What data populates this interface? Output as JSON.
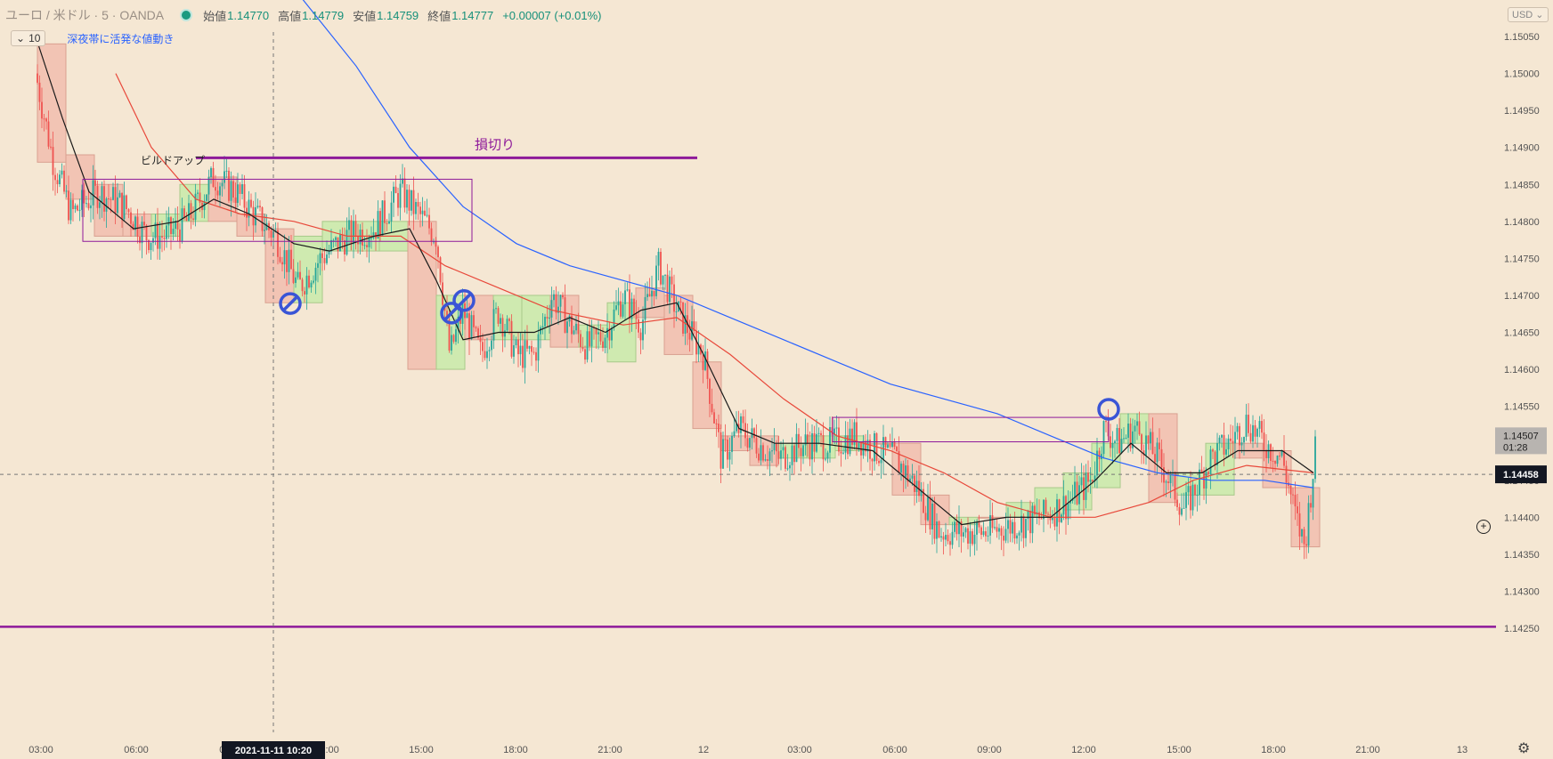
{
  "header": {
    "symbol": "ユーロ / 米ドル · 5 · OANDA",
    "open_label": "始値",
    "open": "1.14770",
    "high_label": "高値",
    "high": "1.14779",
    "low_label": "安値",
    "low": "1.14759",
    "close_label": "終値",
    "close": "1.14777",
    "change": "+0.00007 (+0.01%)",
    "collapse_count": "10",
    "indicator_label": "深夜帯に活発な値動き",
    "currency": "USD"
  },
  "colors": {
    "background": "#f5e7d3",
    "up": "#26a69a",
    "down": "#ef5350",
    "sma_short": "#1a1a1a",
    "sma_mid": "#e8483a",
    "sma_long": "#2962ff",
    "purple": "#8e1a9a",
    "up_box": "#cfeab0",
    "down_box": "#f2c4b4"
  },
  "chart_data": {
    "type": "candlestick",
    "y_range": [
      1.1422,
      1.1509
    ],
    "y_ticks": [
      "1.15050",
      "1.15000",
      "1.14950",
      "1.14900",
      "1.14850",
      "1.14800",
      "1.14750",
      "1.14700",
      "1.14650",
      "1.14600",
      "1.14550",
      "1.14500",
      "1.14450",
      "1.14400",
      "1.14350",
      "1.14300",
      "1.14250"
    ],
    "x_ticks": [
      "03:00",
      "06:00",
      "09:00",
      "12:00",
      "15:00",
      "18:00",
      "21:00",
      "12",
      "03:00",
      "06:00",
      "09:00",
      "12:00",
      "15:00",
      "18:00",
      "21:00",
      "13"
    ],
    "crosshair_time": "2021-11-11   10:20",
    "crosshair_price": "1.14458",
    "last_price": "1.14507",
    "countdown": "01:28",
    "path": [
      [
        0,
        1.1503
      ],
      [
        40,
        1.15
      ],
      [
        60,
        1.1488
      ],
      [
        80,
        1.1481
      ],
      [
        110,
        1.1484
      ],
      [
        140,
        1.1482
      ],
      [
        165,
        1.1478
      ],
      [
        185,
        1.1478
      ],
      [
        210,
        1.148
      ],
      [
        240,
        1.1486
      ],
      [
        265,
        1.1484
      ],
      [
        285,
        1.1481
      ],
      [
        310,
        1.1478
      ],
      [
        335,
        1.1471
      ],
      [
        360,
        1.1475
      ],
      [
        390,
        1.1478
      ],
      [
        420,
        1.1479
      ],
      [
        450,
        1.1484
      ],
      [
        470,
        1.1481
      ],
      [
        490,
        1.1478
      ],
      [
        505,
        1.1462
      ],
      [
        520,
        1.1468
      ],
      [
        540,
        1.1462
      ],
      [
        560,
        1.1468
      ],
      [
        580,
        1.1462
      ],
      [
        600,
        1.1462
      ],
      [
        620,
        1.147
      ],
      [
        640,
        1.1466
      ],
      [
        660,
        1.1463
      ],
      [
        680,
        1.1465
      ],
      [
        700,
        1.147
      ],
      [
        720,
        1.1466
      ],
      [
        740,
        1.1474
      ],
      [
        760,
        1.1468
      ],
      [
        790,
        1.1462
      ],
      [
        810,
        1.1448
      ],
      [
        830,
        1.1452
      ],
      [
        850,
        1.145
      ],
      [
        875,
        1.1448
      ],
      [
        905,
        1.145
      ],
      [
        935,
        1.145
      ],
      [
        960,
        1.1451
      ],
      [
        985,
        1.1449
      ],
      [
        1005,
        1.1448
      ],
      [
        1030,
        1.1444
      ],
      [
        1055,
        1.1438
      ],
      [
        1080,
        1.1438
      ],
      [
        1110,
        1.1438
      ],
      [
        1140,
        1.1439
      ],
      [
        1170,
        1.144
      ],
      [
        1200,
        1.1442
      ],
      [
        1225,
        1.1445
      ],
      [
        1240,
        1.1452
      ],
      [
        1255,
        1.145
      ],
      [
        1275,
        1.1452
      ],
      [
        1300,
        1.1448
      ],
      [
        1330,
        1.1441
      ],
      [
        1360,
        1.1448
      ],
      [
        1380,
        1.145
      ],
      [
        1400,
        1.1453
      ],
      [
        1420,
        1.145
      ],
      [
        1440,
        1.1448
      ],
      [
        1455,
        1.144
      ],
      [
        1465,
        1.1436
      ],
      [
        1478,
        1.145
      ]
    ],
    "sma_short_path": [
      [
        40,
        1.1505
      ],
      [
        70,
        1.1494
      ],
      [
        100,
        1.1484
      ],
      [
        150,
        1.1479
      ],
      [
        200,
        1.148
      ],
      [
        240,
        1.1483
      ],
      [
        280,
        1.1481
      ],
      [
        330,
        1.1477
      ],
      [
        370,
        1.1476
      ],
      [
        420,
        1.1478
      ],
      [
        460,
        1.1479
      ],
      [
        490,
        1.1472
      ],
      [
        520,
        1.1464
      ],
      [
        560,
        1.1465
      ],
      [
        600,
        1.1465
      ],
      [
        640,
        1.1467
      ],
      [
        680,
        1.1465
      ],
      [
        720,
        1.1468
      ],
      [
        760,
        1.1469
      ],
      [
        790,
        1.1462
      ],
      [
        830,
        1.1452
      ],
      [
        870,
        1.145
      ],
      [
        920,
        1.145
      ],
      [
        980,
        1.1449
      ],
      [
        1030,
        1.1444
      ],
      [
        1080,
        1.1439
      ],
      [
        1130,
        1.144
      ],
      [
        1180,
        1.144
      ],
      [
        1230,
        1.1445
      ],
      [
        1270,
        1.145
      ],
      [
        1310,
        1.1446
      ],
      [
        1350,
        1.1446
      ],
      [
        1390,
        1.1449
      ],
      [
        1440,
        1.1449
      ],
      [
        1475,
        1.1446
      ]
    ],
    "sma_mid_path": [
      [
        130,
        1.15
      ],
      [
        170,
        1.149
      ],
      [
        220,
        1.1483
      ],
      [
        270,
        1.1481
      ],
      [
        330,
        1.148
      ],
      [
        390,
        1.1478
      ],
      [
        450,
        1.1478
      ],
      [
        500,
        1.1474
      ],
      [
        560,
        1.1471
      ],
      [
        620,
        1.1468
      ],
      [
        700,
        1.1466
      ],
      [
        760,
        1.1467
      ],
      [
        820,
        1.1462
      ],
      [
        880,
        1.1456
      ],
      [
        940,
        1.1451
      ],
      [
        1000,
        1.1449
      ],
      [
        1060,
        1.1446
      ],
      [
        1120,
        1.1442
      ],
      [
        1180,
        1.144
      ],
      [
        1230,
        1.144
      ],
      [
        1290,
        1.1442
      ],
      [
        1340,
        1.1445
      ],
      [
        1400,
        1.1447
      ],
      [
        1475,
        1.1446
      ]
    ],
    "sma_long_path": [
      [
        340,
        1.151
      ],
      [
        400,
        1.1501
      ],
      [
        460,
        1.149
      ],
      [
        520,
        1.1482
      ],
      [
        580,
        1.1477
      ],
      [
        640,
        1.1474
      ],
      [
        700,
        1.1472
      ],
      [
        760,
        1.147
      ],
      [
        820,
        1.1467
      ],
      [
        880,
        1.1464
      ],
      [
        940,
        1.1461
      ],
      [
        1000,
        1.1458
      ],
      [
        1060,
        1.1456
      ],
      [
        1120,
        1.1454
      ],
      [
        1180,
        1.1451
      ],
      [
        1240,
        1.1448
      ],
      [
        1300,
        1.1446
      ],
      [
        1360,
        1.1445
      ],
      [
        1420,
        1.1445
      ],
      [
        1475,
        1.1444
      ]
    ],
    "session_boxes": [
      [
        42,
        1.1504,
        1.1488,
        "down"
      ],
      [
        74,
        1.1489,
        1.1483,
        "down"
      ],
      [
        106,
        1.1485,
        1.1478,
        "down"
      ],
      [
        138,
        1.1481,
        1.1478,
        "down"
      ],
      [
        170,
        1.1478,
        1.1481,
        "up"
      ],
      [
        202,
        1.148,
        1.1485,
        "up"
      ],
      [
        234,
        1.1486,
        1.148,
        "down"
      ],
      [
        266,
        1.1481,
        1.1478,
        "down"
      ],
      [
        298,
        1.1479,
        1.1469,
        "down"
      ],
      [
        330,
        1.1469,
        1.1478,
        "up"
      ],
      [
        362,
        1.1476,
        1.148,
        "up"
      ],
      [
        394,
        1.1476,
        1.148,
        "up"
      ],
      [
        426,
        1.1476,
        1.148,
        "up"
      ],
      [
        458,
        1.148,
        1.146,
        "down"
      ],
      [
        490,
        1.146,
        1.147,
        "up"
      ],
      [
        522,
        1.147,
        1.1464,
        "down"
      ],
      [
        554,
        1.1464,
        1.147,
        "up"
      ],
      [
        586,
        1.1464,
        1.147,
        "up"
      ],
      [
        618,
        1.147,
        1.1463,
        "down"
      ],
      [
        650,
        1.1463,
        1.1466,
        "up"
      ],
      [
        682,
        1.1461,
        1.1469,
        "up"
      ],
      [
        714,
        1.1471,
        1.1467,
        "down"
      ],
      [
        746,
        1.147,
        1.1462,
        "down"
      ],
      [
        778,
        1.1461,
        1.1452,
        "down"
      ],
      [
        810,
        1.1451,
        1.1449,
        "down"
      ],
      [
        842,
        1.1451,
        1.1447,
        "down"
      ],
      [
        874,
        1.1448,
        1.145,
        "up"
      ],
      [
        906,
        1.1448,
        1.1451,
        "up"
      ],
      [
        938,
        1.1449,
        1.1451,
        "up"
      ],
      [
        970,
        1.145,
        1.145,
        "down"
      ],
      [
        1002,
        1.145,
        1.1443,
        "down"
      ],
      [
        1034,
        1.1443,
        1.1439,
        "down"
      ],
      [
        1066,
        1.1439,
        1.144,
        "up"
      ],
      [
        1098,
        1.144,
        1.144,
        "down"
      ],
      [
        1130,
        1.144,
        1.1442,
        "up"
      ],
      [
        1162,
        1.144,
        1.1444,
        "up"
      ],
      [
        1194,
        1.1441,
        1.1446,
        "up"
      ],
      [
        1226,
        1.1444,
        1.145,
        "up"
      ],
      [
        1258,
        1.145,
        1.1454,
        "up"
      ],
      [
        1290,
        1.1454,
        1.1442,
        "down"
      ],
      [
        1322,
        1.1443,
        1.1446,
        "up"
      ],
      [
        1354,
        1.1443,
        1.145,
        "up"
      ],
      [
        1386,
        1.145,
        1.1448,
        "down"
      ],
      [
        1418,
        1.1449,
        1.1444,
        "down"
      ],
      [
        1450,
        1.1444,
        1.1436,
        "down"
      ]
    ],
    "annotations": {
      "buildup_label": "ビルドアップ",
      "stoploss_label": "損切り",
      "stoploss_price": 1.14886,
      "stoploss_x": [
        220,
        783
      ],
      "range_box": [
        93,
        530,
        1.14857,
        1.14773
      ],
      "range_box2": [
        935,
        1245,
        1.14535,
        1.14502
      ],
      "bottom_line_price": 1.14252,
      "circles": [
        [
          326,
          1.14689,
          "slash"
        ],
        [
          507,
          1.14676,
          "slash"
        ],
        [
          521,
          1.14693,
          "slash"
        ],
        [
          1245,
          1.14546,
          "open"
        ]
      ]
    },
    "grid": false,
    "legend": "none"
  }
}
